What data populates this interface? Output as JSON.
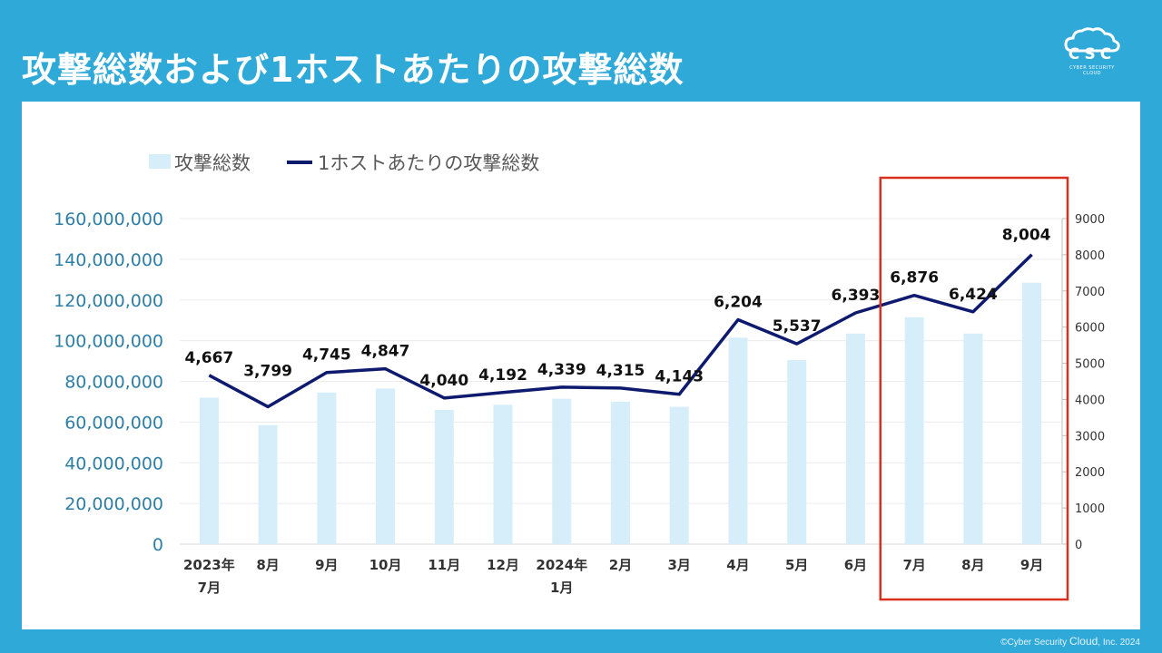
{
  "slide": {
    "title": "攻撃総数および1ホストあたりの攻撃総数",
    "logo_text": "CSC",
    "logo_subtext": "CYBER SECURITY CLOUD",
    "copyright_prefix": "©Cyber Security ",
    "copyright_brand": "Cloud",
    "copyright_suffix": ", Inc.  2024"
  },
  "colors": {
    "background": "#2fa9d8",
    "bar": "#d6eef9",
    "line": "#0d1a6e",
    "left_axis_text": "#2e7fa6",
    "highlight_box": "#d9301e"
  },
  "chart_data": {
    "type": "bar+line",
    "categories": [
      [
        "2023年",
        "7月"
      ],
      [
        "8月"
      ],
      [
        "9月"
      ],
      [
        "10月"
      ],
      [
        "11月"
      ],
      [
        "12月"
      ],
      [
        "2024年",
        "1月"
      ],
      [
        "2月"
      ],
      [
        "3月"
      ],
      [
        "4月"
      ],
      [
        "5月"
      ],
      [
        "6月"
      ],
      [
        "7月"
      ],
      [
        "8月"
      ],
      [
        "9月"
      ]
    ],
    "series": [
      {
        "name": "攻撃総数",
        "type": "bar",
        "axis": "left",
        "values": [
          72000000,
          58500000,
          74500000,
          76500000,
          66000000,
          68500000,
          71500000,
          70000000,
          67500000,
          101500000,
          90500000,
          103500000,
          111500000,
          103500000,
          128500000
        ]
      },
      {
        "name": "1ホストあたりの攻撃総数",
        "type": "line",
        "axis": "right",
        "values": [
          4667,
          3799,
          4745,
          4847,
          4040,
          4192,
          4339,
          4315,
          4143,
          6204,
          5537,
          6393,
          6876,
          6424,
          8004
        ],
        "labels": [
          "4,667",
          "3,799",
          "4,745",
          "4,847",
          "4,040",
          "4,192",
          "4,339",
          "4,315",
          "4,143",
          "6,204",
          "5,537",
          "6,393",
          "6,876",
          "6,424",
          "8,004"
        ]
      }
    ],
    "left_axis": {
      "ylim": [
        0,
        160000000
      ],
      "ticks": [
        0,
        20000000,
        40000000,
        60000000,
        80000000,
        100000000,
        120000000,
        140000000,
        160000000
      ],
      "tick_labels": [
        "0",
        "20,000,000",
        "40,000,000",
        "60,000,000",
        "80,000,000",
        "100,000,000",
        "120,000,000",
        "140,000,000",
        "160,000,000"
      ]
    },
    "right_axis": {
      "ylim": [
        0,
        9000
      ],
      "ticks": [
        0,
        1000,
        2000,
        3000,
        4000,
        5000,
        6000,
        7000,
        8000,
        9000
      ],
      "tick_labels": [
        "0",
        "1000",
        "2000",
        "3000",
        "4000",
        "5000",
        "6000",
        "7000",
        "8000",
        "9000"
      ]
    },
    "legend": {
      "placement": "top-left",
      "entries": [
        "攻撃総数",
        "1ホストあたりの攻撃総数"
      ]
    },
    "grid": true,
    "highlight": {
      "categories": [
        "7月",
        "8月",
        "9月"
      ],
      "index_start": 12,
      "index_end": 14
    }
  }
}
